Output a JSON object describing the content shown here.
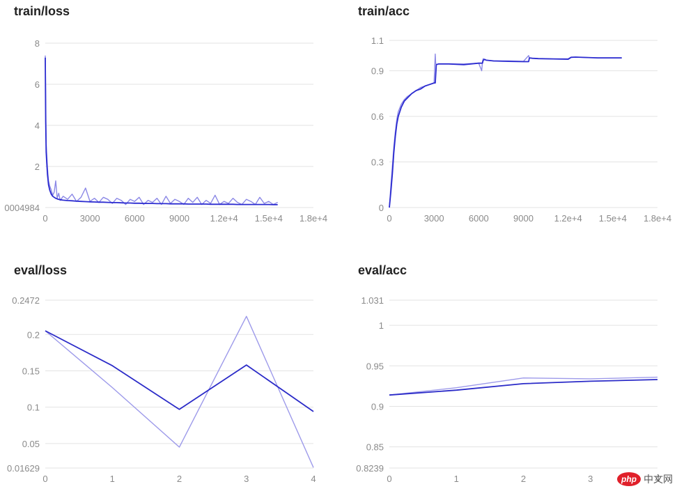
{
  "chart_data": [
    {
      "id": "train-loss",
      "type": "line",
      "title": "train/loss",
      "xlabel": "",
      "ylabel": "",
      "x_tick_labels": [
        "0",
        "3000",
        "6000",
        "9000",
        "1.2e+4",
        "1.5e+4",
        "1.8e+4"
      ],
      "y_tick_labels": [
        "0004984",
        "2",
        "4",
        "6",
        "8"
      ],
      "xlim": [
        0,
        18000
      ],
      "ylim": [
        0.0004984,
        8
      ],
      "grid": true,
      "series": [
        {
          "color": "#8b88e6",
          "x": [
            0,
            30,
            60,
            100,
            150,
            220,
            300,
            400,
            500,
            600,
            700,
            800,
            900,
            1000,
            1200,
            1500,
            1800,
            2100,
            2400,
            2700,
            3000,
            3300,
            3600,
            3900,
            4200,
            4500,
            4800,
            5100,
            5400,
            5700,
            6000,
            6300,
            6600,
            6900,
            7200,
            7500,
            7800,
            8100,
            8400,
            8700,
            9000,
            9300,
            9600,
            9900,
            10200,
            10500,
            10800,
            11100,
            11400,
            11700,
            12000,
            12300,
            12600,
            12900,
            13200,
            13500,
            13800,
            14100,
            14400,
            14700,
            15000,
            15300,
            15600
          ],
          "y": [
            7.4,
            5.5,
            3.1,
            2.6,
            1.9,
            1.3,
            1.05,
            0.85,
            0.6,
            0.75,
            1.3,
            0.45,
            0.7,
            0.35,
            0.55,
            0.4,
            0.65,
            0.3,
            0.5,
            0.95,
            0.3,
            0.45,
            0.25,
            0.5,
            0.4,
            0.2,
            0.45,
            0.35,
            0.15,
            0.4,
            0.3,
            0.5,
            0.15,
            0.35,
            0.25,
            0.45,
            0.15,
            0.55,
            0.2,
            0.4,
            0.3,
            0.15,
            0.45,
            0.25,
            0.5,
            0.15,
            0.35,
            0.2,
            0.6,
            0.15,
            0.3,
            0.2,
            0.45,
            0.25,
            0.15,
            0.4,
            0.3,
            0.15,
            0.5,
            0.2,
            0.3,
            0.15,
            0.25
          ]
        },
        {
          "color": "#2b2bd0",
          "x": [
            0,
            30,
            60,
            100,
            150,
            220,
            300,
            400,
            500,
            600,
            700,
            800,
            900,
            1000,
            1200,
            1500,
            1800,
            2100,
            2400,
            2700,
            3000,
            3300,
            3600,
            3900,
            4200,
            4500,
            4800,
            5100,
            5400,
            5700,
            6000,
            6300,
            6600,
            6900,
            7200,
            7500,
            7800,
            8100,
            8400,
            8700,
            9000,
            9300,
            9600,
            9900,
            10200,
            10500,
            10800,
            11100,
            11400,
            11700,
            12000,
            12300,
            12600,
            12900,
            13200,
            13500,
            13800,
            14100,
            14400,
            14700,
            15000,
            15300,
            15600
          ],
          "y": [
            7.3,
            4.2,
            2.7,
            2.2,
            1.6,
            1.1,
            0.85,
            0.65,
            0.55,
            0.5,
            0.45,
            0.42,
            0.4,
            0.38,
            0.36,
            0.34,
            0.33,
            0.31,
            0.3,
            0.29,
            0.28,
            0.27,
            0.26,
            0.26,
            0.25,
            0.24,
            0.24,
            0.23,
            0.22,
            0.22,
            0.21,
            0.21,
            0.2,
            0.2,
            0.2,
            0.19,
            0.19,
            0.19,
            0.18,
            0.18,
            0.18,
            0.18,
            0.17,
            0.17,
            0.17,
            0.17,
            0.17,
            0.16,
            0.16,
            0.16,
            0.16,
            0.16,
            0.16,
            0.15,
            0.15,
            0.15,
            0.15,
            0.15,
            0.15,
            0.15,
            0.15,
            0.14,
            0.14
          ]
        }
      ]
    },
    {
      "id": "train-acc",
      "type": "line",
      "title": "train/acc",
      "xlabel": "",
      "ylabel": "",
      "x_tick_labels": [
        "0",
        "3000",
        "6000",
        "9000",
        "1.2e+4",
        "1.5e+4",
        "1.8e+4"
      ],
      "y_tick_labels": [
        "0",
        "0.3",
        "0.6",
        "0.9",
        "1.1"
      ],
      "xlim": [
        0,
        18000
      ],
      "ylim": [
        0,
        1.1
      ],
      "grid": true,
      "series": [
        {
          "color": "#8b88e6",
          "x": [
            0,
            100,
            200,
            300,
            400,
            500,
            600,
            800,
            1000,
            1200,
            1500,
            1800,
            2100,
            2400,
            2700,
            3000,
            3080,
            3110,
            3150,
            3300,
            4000,
            5000,
            6000,
            6200,
            6250,
            6300,
            6500,
            7000,
            8000,
            9000,
            9350,
            9400,
            9600,
            10000,
            11000,
            12000,
            12200,
            12500,
            13000,
            14000,
            15000,
            15600
          ],
          "y": [
            0.0,
            0.14,
            0.27,
            0.4,
            0.5,
            0.58,
            0.63,
            0.68,
            0.71,
            0.73,
            0.75,
            0.77,
            0.79,
            0.8,
            0.81,
            0.82,
            1.01,
            0.95,
            0.94,
            0.945,
            0.945,
            0.945,
            0.95,
            0.9,
            0.96,
            0.98,
            0.97,
            0.965,
            0.965,
            0.962,
            1.0,
            0.985,
            0.982,
            0.98,
            0.978,
            0.98,
            0.99,
            0.99,
            0.988,
            0.985,
            0.985,
            0.985
          ]
        },
        {
          "color": "#2b2bd0",
          "x": [
            0,
            100,
            200,
            300,
            400,
            500,
            600,
            800,
            1000,
            1200,
            1500,
            1800,
            2100,
            2400,
            2700,
            3000,
            3080,
            3150,
            3300,
            4000,
            5000,
            6000,
            6250,
            6300,
            6400,
            6500,
            7000,
            8000,
            9000,
            9350,
            9400,
            9600,
            10000,
            11000,
            12000,
            12200,
            12500,
            13000,
            14000,
            15000,
            15600
          ],
          "y": [
            0.0,
            0.1,
            0.22,
            0.36,
            0.47,
            0.55,
            0.6,
            0.66,
            0.7,
            0.72,
            0.75,
            0.77,
            0.78,
            0.8,
            0.81,
            0.82,
            0.82,
            0.94,
            0.945,
            0.945,
            0.94,
            0.95,
            0.95,
            0.97,
            0.975,
            0.97,
            0.965,
            0.962,
            0.96,
            0.96,
            0.985,
            0.982,
            0.98,
            0.978,
            0.976,
            0.988,
            0.99,
            0.988,
            0.985,
            0.985,
            0.985
          ]
        }
      ]
    },
    {
      "id": "eval-loss",
      "type": "line",
      "title": "eval/loss",
      "xlabel": "",
      "ylabel": "",
      "x_tick_labels": [
        "0",
        "1",
        "2",
        "3",
        "4"
      ],
      "y_tick_labels": [
        "0.01629",
        "0.05",
        "0.1",
        "0.15",
        "0.2",
        "0.2472"
      ],
      "xlim": [
        0,
        4
      ],
      "ylim": [
        0.01629,
        0.2472
      ],
      "grid": true,
      "series": [
        {
          "color": "#9d9aea",
          "x": [
            0,
            1,
            2,
            3,
            4
          ],
          "y": [
            0.205,
            0.127,
            0.045,
            0.225,
            0.017
          ]
        },
        {
          "color": "#2b2bc8",
          "x": [
            0,
            1,
            2,
            3,
            4
          ],
          "y": [
            0.205,
            0.157,
            0.097,
            0.158,
            0.094
          ]
        }
      ]
    },
    {
      "id": "eval-acc",
      "type": "line",
      "title": "eval/acc",
      "xlabel": "",
      "ylabel": "",
      "x_tick_labels": [
        "0",
        "1",
        "2",
        "3",
        "4"
      ],
      "y_tick_labels": [
        "0.8239",
        "0.85",
        "0.9",
        "0.95",
        "1",
        "1.031"
      ],
      "xlim": [
        0,
        4
      ],
      "ylim": [
        0.8239,
        1.031
      ],
      "grid": true,
      "series": [
        {
          "color": "#9d9aea",
          "x": [
            0,
            1,
            2,
            3,
            4
          ],
          "y": [
            0.914,
            0.923,
            0.935,
            0.934,
            0.936
          ]
        },
        {
          "color": "#2b2bc8",
          "x": [
            0,
            1,
            2,
            3,
            4
          ],
          "y": [
            0.914,
            0.92,
            0.928,
            0.931,
            0.933
          ]
        }
      ]
    }
  ],
  "watermark": {
    "logo_text": "php",
    "text": "中文网"
  }
}
